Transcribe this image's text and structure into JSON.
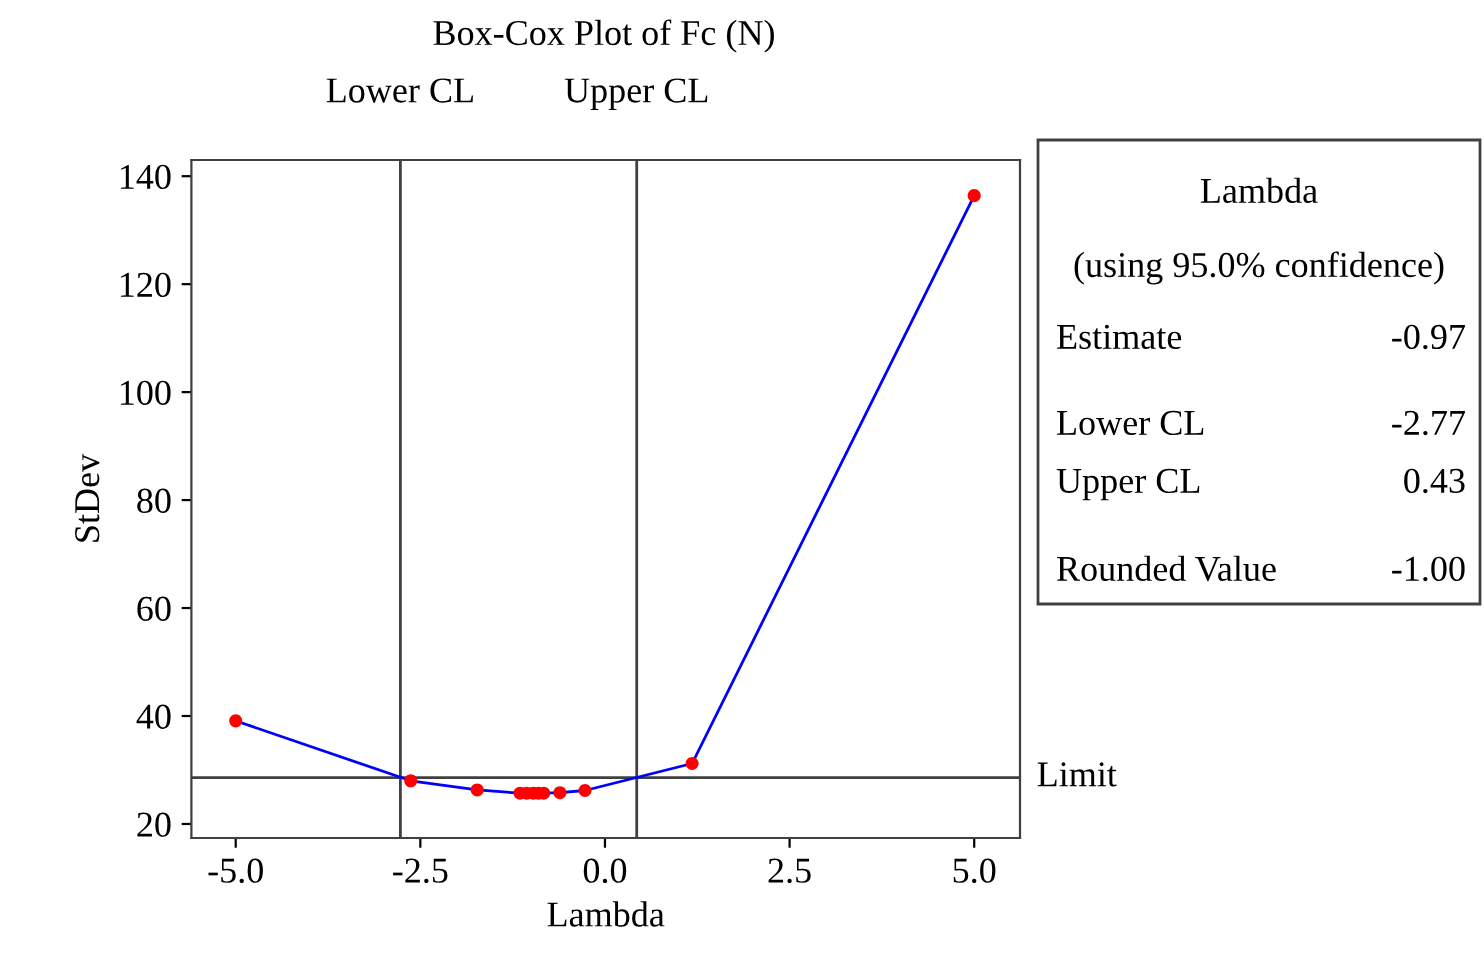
{
  "chart_data": {
    "type": "line",
    "title": "Box-Cox Plot of Fc (N)",
    "xlabel": "Lambda",
    "ylabel": "StDev",
    "x": [
      -5.0,
      -2.63,
      -1.73,
      -1.15,
      -1.06,
      -0.97,
      -0.9,
      -0.83,
      -0.61,
      -0.27,
      1.18,
      5.0
    ],
    "series": [
      {
        "color": "#0000ff",
        "colors": [
          "#ff0000",
          "#ff0000",
          "#ff0000",
          "#ff0000",
          "#ff0000",
          "#ff0000",
          "#ff0000",
          "#ff0000",
          "#ff0000",
          "#ff0000",
          "#ff0000",
          "#ff0000"
        ],
        "values": [
          39.1,
          28.0,
          26.3,
          25.7,
          25.7,
          25.7,
          25.7,
          25.7,
          25.8,
          26.2,
          31.2,
          136.4
        ]
      }
    ],
    "xlim": [
      -5.6,
      5.62
    ],
    "ylim": [
      17.4,
      143
    ],
    "xticks": [
      {
        "value": -5,
        "label": "-5.0"
      },
      {
        "value": -2.5,
        "label": "-2.5"
      },
      {
        "value": 0,
        "label": "0.0"
      },
      {
        "value": 2.5,
        "label": "2.5"
      },
      {
        "value": 5,
        "label": "5.0"
      }
    ],
    "yticks": [
      20,
      40,
      60,
      80,
      100,
      120,
      140
    ],
    "ref_lines": [
      {
        "axis": "x",
        "value": -2.77,
        "label": "Lower CL",
        "color": "#404040"
      },
      {
        "axis": "x",
        "value": 0.43,
        "label": "Upper CL",
        "color": "#404040"
      },
      {
        "axis": "y",
        "value": 28.6,
        "label": "Limit",
        "color": "#404040"
      }
    ],
    "annotations": [
      "Lambda",
      "(using 95.0% confidence)",
      "Estimate",
      "-0.97",
      "Lower CL",
      "-2.77",
      "Upper CL",
      "0.43",
      "Rounded Value",
      "-1.00"
    ],
    "marker": "circle",
    "line_style": "solid",
    "grid": false,
    "legend": false
  }
}
